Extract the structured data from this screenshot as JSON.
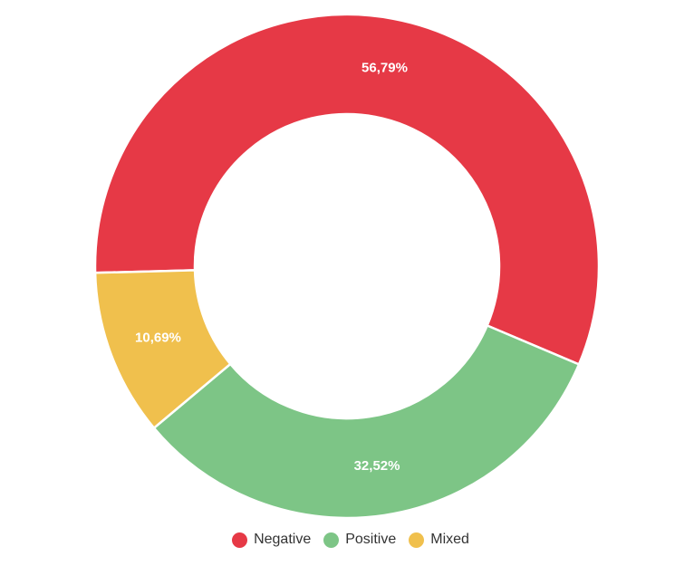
{
  "chart_data": {
    "type": "pie",
    "donut": true,
    "title": "",
    "legend_position": "bottom-center",
    "slices": [
      {
        "name": "Negative",
        "value": 56.79,
        "label": "56,79%",
        "color": "#e63946"
      },
      {
        "name": "Positive",
        "value": 32.52,
        "label": "32,52%",
        "color": "#7dc586"
      },
      {
        "name": "Mixed",
        "value": 10.69,
        "label": "10,69%",
        "color": "#f0c04d"
      }
    ]
  }
}
